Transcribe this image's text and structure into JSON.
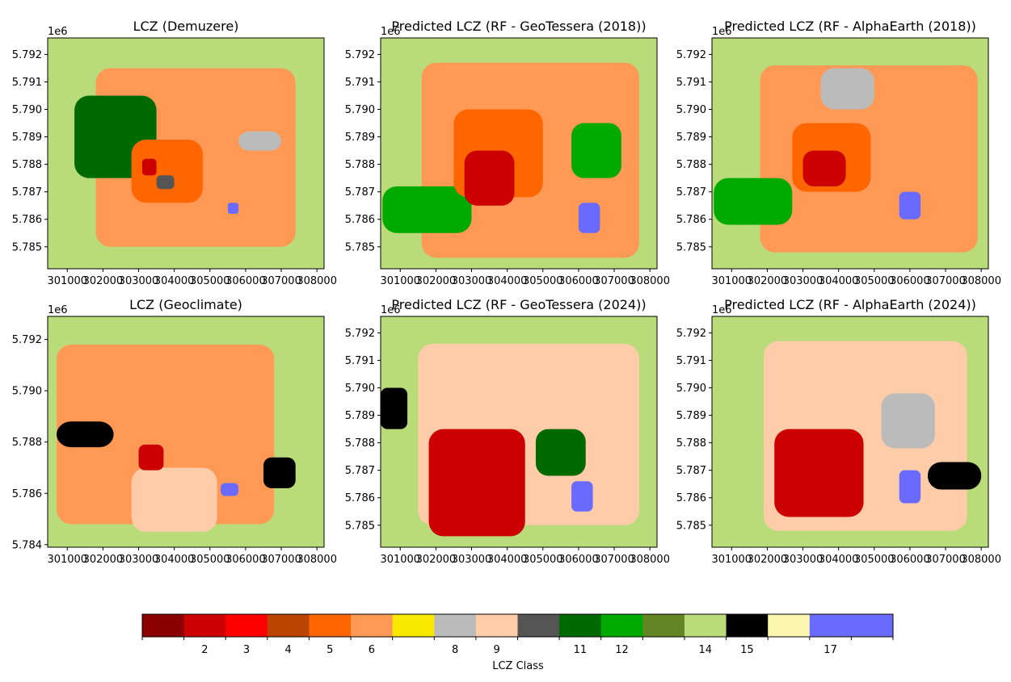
{
  "chart_data": [
    {
      "type": "heatmap",
      "title": "LCZ (Demuzere)",
      "offset_label": "1e6",
      "ylim": [
        5.7842,
        5.7926
      ],
      "xlim": [
        300450,
        308200
      ],
      "yticks": [
        "5.785",
        "5.786",
        "5.787",
        "5.788",
        "5.789",
        "5.790",
        "5.791",
        "5.792"
      ],
      "ytick_values": [
        5.785,
        5.786,
        5.787,
        5.788,
        5.789,
        5.79,
        5.791,
        5.792
      ],
      "xticks": [
        "301000",
        "302000",
        "303000",
        "304000",
        "305000",
        "306000",
        "307000",
        "308000"
      ],
      "xtick_values": [
        301000,
        302000,
        303000,
        304000,
        305000,
        306000,
        307000,
        308000
      ],
      "base_class": 14,
      "regions": [
        {
          "class": 6,
          "x": [
            301800,
            307400
          ],
          "y": [
            5.785,
            5.7915
          ]
        },
        {
          "class": 11,
          "x": [
            301200,
            303500
          ],
          "y": [
            5.7875,
            5.7905
          ]
        },
        {
          "class": 8,
          "x": [
            305800,
            307000
          ],
          "y": [
            5.7885,
            5.7892
          ]
        },
        {
          "class": 5,
          "x": [
            302800,
            304800
          ],
          "y": [
            5.7866,
            5.7889
          ]
        },
        {
          "class": 2,
          "x": [
            303100,
            303500
          ],
          "y": [
            5.7876,
            5.7882
          ]
        },
        {
          "class": 10,
          "x": [
            303500,
            304000
          ],
          "y": [
            5.7871,
            5.7876
          ]
        },
        {
          "class": 17,
          "x": [
            305500,
            305800
          ],
          "y": [
            5.7862,
            5.7866
          ]
        }
      ]
    },
    {
      "type": "heatmap",
      "title": "Predicted LCZ (RF - GeoTessera (2018))",
      "offset_label": "1e6",
      "ylim": [
        5.7842,
        5.7926
      ],
      "xlim": [
        300450,
        308200
      ],
      "yticks": [
        "5.785",
        "5.786",
        "5.787",
        "5.788",
        "5.789",
        "5.790",
        "5.791",
        "5.792"
      ],
      "ytick_values": [
        5.785,
        5.786,
        5.787,
        5.788,
        5.789,
        5.79,
        5.791,
        5.792
      ],
      "xticks": [
        "301000",
        "302000",
        "303000",
        "304000",
        "305000",
        "306000",
        "307000",
        "308000"
      ],
      "xtick_values": [
        301000,
        302000,
        303000,
        304000,
        305000,
        306000,
        307000,
        308000
      ],
      "base_class": 14,
      "regions": [
        {
          "class": 6,
          "x": [
            301600,
            307700
          ],
          "y": [
            5.7846,
            5.7917
          ]
        },
        {
          "class": 12,
          "x": [
            300500,
            303000
          ],
          "y": [
            5.7855,
            5.7872
          ]
        },
        {
          "class": 5,
          "x": [
            302500,
            305000
          ],
          "y": [
            5.7868,
            5.79
          ]
        },
        {
          "class": 2,
          "x": [
            302800,
            304200
          ],
          "y": [
            5.7865,
            5.7885
          ]
        },
        {
          "class": 12,
          "x": [
            305800,
            307200
          ],
          "y": [
            5.7875,
            5.7895
          ]
        },
        {
          "class": 17,
          "x": [
            306000,
            306600
          ],
          "y": [
            5.7855,
            5.7866
          ]
        }
      ]
    },
    {
      "type": "heatmap",
      "title": "Predicted LCZ (RF - AlphaEarth (2018))",
      "offset_label": "1e6",
      "ylim": [
        5.7842,
        5.7926
      ],
      "xlim": [
        300450,
        308200
      ],
      "yticks": [
        "5.785",
        "5.786",
        "5.787",
        "5.788",
        "5.789",
        "5.790",
        "5.791",
        "5.792"
      ],
      "ytick_values": [
        5.785,
        5.786,
        5.787,
        5.788,
        5.789,
        5.79,
        5.791,
        5.792
      ],
      "xticks": [
        "301000",
        "302000",
        "303000",
        "304000",
        "305000",
        "306000",
        "307000",
        "308000"
      ],
      "xtick_values": [
        301000,
        302000,
        303000,
        304000,
        305000,
        306000,
        307000,
        308000
      ],
      "base_class": 14,
      "regions": [
        {
          "class": 6,
          "x": [
            301800,
            307900
          ],
          "y": [
            5.7848,
            5.7916
          ]
        },
        {
          "class": 12,
          "x": [
            300500,
            302700
          ],
          "y": [
            5.7858,
            5.7875
          ]
        },
        {
          "class": 5,
          "x": [
            302700,
            304900
          ],
          "y": [
            5.787,
            5.7895
          ]
        },
        {
          "class": 2,
          "x": [
            303000,
            304200
          ],
          "y": [
            5.7872,
            5.7885
          ]
        },
        {
          "class": 8,
          "x": [
            303500,
            305000
          ],
          "y": [
            5.79,
            5.7915
          ]
        },
        {
          "class": 17,
          "x": [
            305700,
            306300
          ],
          "y": [
            5.786,
            5.787
          ]
        }
      ]
    },
    {
      "type": "heatmap",
      "title": "LCZ (Geoclimate)",
      "offset_label": "1e6",
      "ylim": [
        5.7839,
        5.7929
      ],
      "xlim": [
        300450,
        308200
      ],
      "yticks": [
        "5.784",
        "5.786",
        "5.788",
        "5.790",
        "5.792"
      ],
      "ytick_values": [
        5.784,
        5.786,
        5.788,
        5.79,
        5.792
      ],
      "xticks": [
        "301000",
        "302000",
        "303000",
        "304000",
        "305000",
        "306000",
        "307000",
        "308000"
      ],
      "xtick_values": [
        301000,
        302000,
        303000,
        304000,
        305000,
        306000,
        307000,
        308000
      ],
      "base_class": 14,
      "regions": [
        {
          "class": 6,
          "x": [
            300700,
            306800
          ],
          "y": [
            5.7848,
            5.7918
          ]
        },
        {
          "class": 9,
          "x": [
            302800,
            305200
          ],
          "y": [
            5.7845,
            5.787
          ]
        },
        {
          "class": 15,
          "x": [
            300700,
            302300
          ],
          "y": [
            5.7878,
            5.7888
          ]
        },
        {
          "class": 15,
          "x": [
            306500,
            307400
          ],
          "y": [
            5.7862,
            5.7874
          ]
        },
        {
          "class": 2,
          "x": [
            303000,
            303700
          ],
          "y": [
            5.7869,
            5.7879
          ]
        },
        {
          "class": 17,
          "x": [
            305300,
            305800
          ],
          "y": [
            5.7859,
            5.7864
          ]
        }
      ]
    },
    {
      "type": "heatmap",
      "title": "Predicted LCZ (RF - GeoTessera (2024))",
      "offset_label": "1e6",
      "ylim": [
        5.7842,
        5.7926
      ],
      "xlim": [
        300450,
        308200
      ],
      "yticks": [
        "5.785",
        "5.786",
        "5.787",
        "5.788",
        "5.789",
        "5.790",
        "5.791",
        "5.792"
      ],
      "ytick_values": [
        5.785,
        5.786,
        5.787,
        5.788,
        5.789,
        5.79,
        5.791,
        5.792
      ],
      "xticks": [
        "301000",
        "302000",
        "303000",
        "304000",
        "305000",
        "306000",
        "307000",
        "308000"
      ],
      "xtick_values": [
        301000,
        302000,
        303000,
        304000,
        305000,
        306000,
        307000,
        308000
      ],
      "base_class": 14,
      "regions": [
        {
          "class": 9,
          "x": [
            301500,
            307700
          ],
          "y": [
            5.785,
            5.7916
          ]
        },
        {
          "class": 2,
          "x": [
            301800,
            304500
          ],
          "y": [
            5.7846,
            5.7885
          ]
        },
        {
          "class": 15,
          "x": [
            300450,
            301200
          ],
          "y": [
            5.7885,
            5.79
          ]
        },
        {
          "class": 11,
          "x": [
            304800,
            306200
          ],
          "y": [
            5.7868,
            5.7885
          ]
        },
        {
          "class": 17,
          "x": [
            305800,
            306400
          ],
          "y": [
            5.7855,
            5.7866
          ]
        }
      ]
    },
    {
      "type": "heatmap",
      "title": "Predicted LCZ (RF - AlphaEarth (2024))",
      "offset_label": "1e6",
      "ylim": [
        5.7842,
        5.7926
      ],
      "xlim": [
        300450,
        308200
      ],
      "yticks": [
        "5.785",
        "5.786",
        "5.787",
        "5.788",
        "5.789",
        "5.790",
        "5.791",
        "5.792"
      ],
      "ytick_values": [
        5.785,
        5.786,
        5.787,
        5.788,
        5.789,
        5.79,
        5.791,
        5.792
      ],
      "xticks": [
        "301000",
        "302000",
        "303000",
        "304000",
        "305000",
        "306000",
        "307000",
        "308000"
      ],
      "xtick_values": [
        301000,
        302000,
        303000,
        304000,
        305000,
        306000,
        307000,
        308000
      ],
      "base_class": 14,
      "regions": [
        {
          "class": 9,
          "x": [
            301900,
            307600
          ],
          "y": [
            5.7848,
            5.7917
          ]
        },
        {
          "class": 2,
          "x": [
            302200,
            304700
          ],
          "y": [
            5.7853,
            5.7885
          ]
        },
        {
          "class": 8,
          "x": [
            305200,
            306700
          ],
          "y": [
            5.7878,
            5.7898
          ]
        },
        {
          "class": 15,
          "x": [
            306500,
            308000
          ],
          "y": [
            5.7863,
            5.7873
          ]
        },
        {
          "class": 17,
          "x": [
            305700,
            306300
          ],
          "y": [
            5.7858,
            5.787
          ]
        }
      ]
    }
  ],
  "colorbar": {
    "label": "LCZ Class",
    "classes": [
      1,
      2,
      3,
      4,
      5,
      6,
      7,
      8,
      9,
      10,
      11,
      12,
      13,
      14,
      15,
      16,
      17,
      18
    ],
    "tick_labels": [
      "",
      "2",
      "3",
      "4",
      "5",
      "6",
      "",
      "8",
      "9",
      "",
      "11",
      "12",
      "",
      "14",
      "15",
      "",
      "17",
      ""
    ],
    "colors": [
      "#8b0000",
      "#cc0000",
      "#ff0000",
      "#bb4400",
      "#ff6600",
      "#ff9955",
      "#f9e800",
      "#bbbbbb",
      "#ffcca9",
      "#555555",
      "#006a00",
      "#00aa00",
      "#648525",
      "#b9db79",
      "#000000",
      "#fbf7ae",
      "#6a6aff",
      "#6a6aff"
    ]
  }
}
